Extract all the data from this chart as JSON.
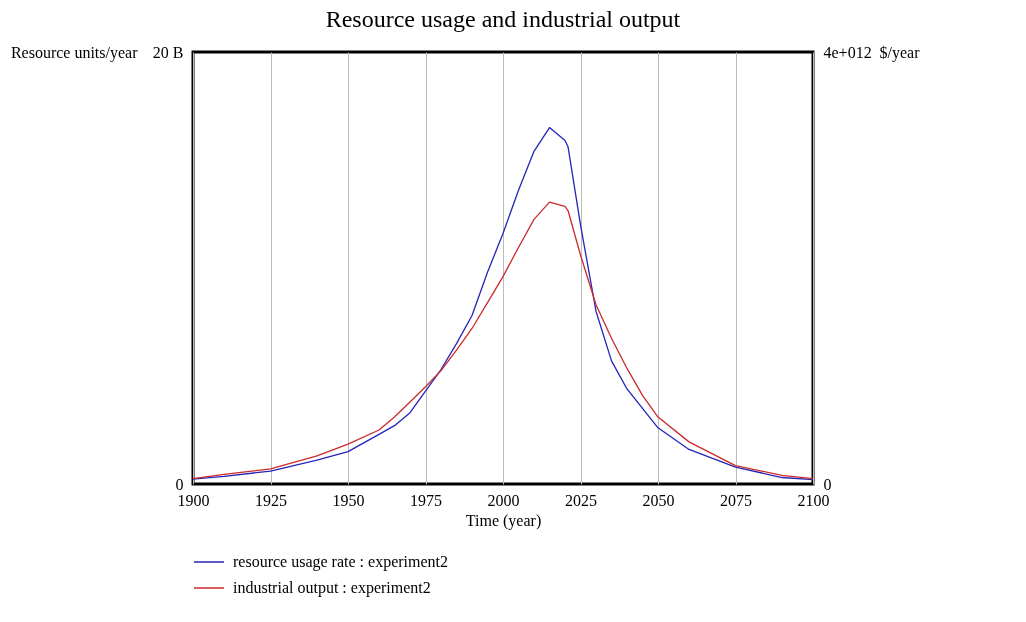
{
  "chart_data": {
    "type": "line",
    "title": "Resource usage and industrial output",
    "xlabel": "Time (year)",
    "ylabel": "Resource units/year",
    "y2label": "$/year",
    "x": [
      1900,
      1910,
      1925,
      1940,
      1950,
      1960,
      1965,
      1970,
      1975,
      1980,
      1985,
      1990,
      1995,
      2000,
      2005,
      2010,
      2015,
      2020,
      2021,
      2025,
      2030,
      2035,
      2040,
      2045,
      2050,
      2060,
      2075,
      2090,
      2100
    ],
    "series": [
      {
        "name": "resource usage rate : experiment2",
        "color": "#2424b8",
        "values": [
          230000000.0,
          350000000.0,
          600000000.0,
          1100000000.0,
          1500000000.0,
          2300000000.0,
          2700000000.0,
          3300000000.0,
          4300000000.0,
          5300000000.0,
          6500000000.0,
          7800000000.0,
          9800000000.0,
          11600000000.0,
          13600000000.0,
          15400000000.0,
          16500000000.0,
          15900000000.0,
          15600000000.0,
          12000000000.0,
          8000000000.0,
          5700000000.0,
          4400000000.0,
          3500000000.0,
          2600000000.0,
          1600000000.0,
          780000000.0,
          300000000.0,
          200000000.0
        ]
      },
      {
        "name": "industrial output : experiment2",
        "color": "#cc2a2a",
        "axis": "y2",
        "values": [
          50000000000.0,
          90000000000.0,
          140000000000.0,
          260000000000.0,
          370000000000.0,
          500000000000.0,
          620000000000.0,
          760000000000.0,
          900000000000.0,
          1050000000000.0,
          1240000000000.0,
          1440000000000.0,
          1680000000000.0,
          1920000000000.0,
          2190000000000.0,
          2450000000000.0,
          2610000000000.0,
          2570000000000.0,
          2530000000000.0,
          2120000000000.0,
          1660000000000.0,
          1350000000000.0,
          1070000000000.0,
          820000000000.0,
          620000000000.0,
          390000000000.0,
          170000000000.0,
          80000000000.0,
          50000000000.0
        ]
      }
    ],
    "xlim": [
      1900,
      2100
    ],
    "xticks": [
      1900,
      1925,
      1950,
      1975,
      2000,
      2025,
      2050,
      2075,
      2100
    ],
    "ylim": [
      0,
      20000000000
    ],
    "yticks": [
      {
        "value": 0,
        "label": "0"
      },
      {
        "value": 20000000000,
        "label": "20 B"
      }
    ],
    "y2lim": [
      0,
      4000000000000
    ],
    "y2ticks": [
      {
        "value": 0,
        "label": "0"
      },
      {
        "value": 4000000000000,
        "label": "4e+012"
      }
    ],
    "grid": "x",
    "legend": "bottom",
    "line_style": "solid"
  }
}
